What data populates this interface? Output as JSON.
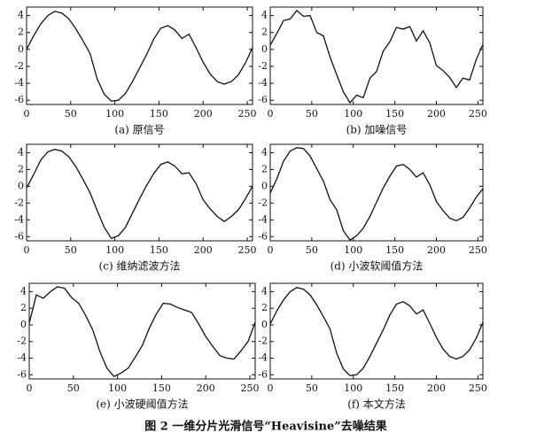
{
  "caption": "图 2 一维分片光滑信号“Heavisine”去噪结果",
  "chart_data": [
    {
      "type": "line",
      "title": "(a) 原信号",
      "color": "#111111",
      "x": [
        0,
        8,
        16,
        24,
        32,
        40,
        48,
        56,
        64,
        72,
        80,
        88,
        96,
        104,
        112,
        120,
        128,
        136,
        144,
        152,
        160,
        168,
        176,
        184,
        192,
        200,
        208,
        216,
        224,
        232,
        240,
        248,
        256
      ],
      "values": [
        0,
        1.6,
        3.0,
        4.0,
        4.5,
        4.3,
        3.6,
        2.4,
        1.0,
        -0.5,
        -3.5,
        -5.3,
        -6.1,
        -6.0,
        -5.2,
        -3.8,
        -2.2,
        -0.6,
        1.2,
        2.5,
        2.8,
        2.3,
        1.3,
        1.8,
        0.2,
        -1.5,
        -2.9,
        -3.8,
        -4.1,
        -3.8,
        -3.0,
        -1.6,
        0.2
      ],
      "xlim": [
        0,
        256
      ],
      "xticks": [
        0,
        50,
        100,
        150,
        200,
        250
      ],
      "ylim": [
        -6.5,
        5
      ],
      "yticks": [
        -6,
        -4,
        -2,
        0,
        2,
        4
      ]
    },
    {
      "type": "line",
      "title": "(b) 加噪信号",
      "color": "#111111",
      "x": [
        0,
        8,
        16,
        24,
        32,
        40,
        48,
        56,
        64,
        72,
        80,
        88,
        96,
        104,
        112,
        120,
        128,
        136,
        144,
        152,
        160,
        168,
        176,
        184,
        192,
        200,
        208,
        216,
        224,
        232,
        240,
        248,
        256
      ],
      "values": [
        0.5,
        1.9,
        3.4,
        3.6,
        4.6,
        3.9,
        4.0,
        2.0,
        1.6,
        -0.9,
        -3.0,
        -5.0,
        -6.3,
        -5.4,
        -5.7,
        -3.4,
        -2.6,
        -0.2,
        0.9,
        2.6,
        2.4,
        2.7,
        1.0,
        2.2,
        0.8,
        -1.9,
        -2.5,
        -3.3,
        -4.5,
        -3.4,
        -3.6,
        -1.2,
        0.6
      ],
      "xlim": [
        0,
        256
      ],
      "xticks": [
        0,
        50,
        100,
        150,
        200,
        250
      ],
      "ylim": [
        -6.5,
        5
      ],
      "yticks": [
        -6,
        -4,
        -2,
        0,
        2,
        4
      ]
    },
    {
      "type": "line",
      "title": "(c) 维纳滤波方法",
      "color": "#111111",
      "x": [
        0,
        8,
        16,
        24,
        32,
        40,
        48,
        56,
        64,
        72,
        80,
        88,
        96,
        104,
        112,
        120,
        128,
        136,
        144,
        152,
        160,
        168,
        176,
        184,
        192,
        200,
        208,
        216,
        224,
        232,
        240,
        248,
        256
      ],
      "values": [
        -0.2,
        1.4,
        3.1,
        4.1,
        4.4,
        4.2,
        3.5,
        2.3,
        0.8,
        -0.8,
        -2.9,
        -4.9,
        -6.2,
        -5.9,
        -4.9,
        -3.2,
        -1.5,
        0.1,
        1.5,
        2.6,
        2.9,
        2.4,
        1.5,
        1.6,
        0.3,
        -1.6,
        -2.7,
        -3.6,
        -4.2,
        -3.6,
        -2.8,
        -1.5,
        0.0
      ],
      "xlim": [
        0,
        256
      ],
      "xticks": [
        0,
        50,
        100,
        150,
        200,
        250
      ],
      "ylim": [
        -6.5,
        5
      ],
      "yticks": [
        -6,
        -4,
        -2,
        0,
        2,
        4
      ]
    },
    {
      "type": "line",
      "title": "(d) 小波软阈值方法",
      "color": "#111111",
      "x": [
        0,
        8,
        16,
        24,
        32,
        40,
        48,
        56,
        64,
        72,
        80,
        88,
        96,
        104,
        112,
        120,
        128,
        136,
        144,
        152,
        160,
        168,
        176,
        184,
        192,
        200,
        208,
        216,
        224,
        232,
        240,
        248,
        256
      ],
      "values": [
        -0.8,
        0.9,
        3.0,
        4.2,
        4.6,
        4.5,
        3.6,
        2.1,
        0.6,
        -1.6,
        -2.8,
        -5.3,
        -6.4,
        -5.9,
        -5.0,
        -3.6,
        -1.9,
        -0.2,
        1.2,
        2.4,
        2.6,
        2.0,
        1.1,
        1.6,
        0.2,
        -1.8,
        -2.9,
        -3.8,
        -4.1,
        -3.7,
        -2.6,
        -1.3,
        -0.3
      ],
      "xlim": [
        0,
        256
      ],
      "xticks": [
        0,
        50,
        100,
        150,
        200,
        250
      ],
      "ylim": [
        -6.5,
        5
      ],
      "yticks": [
        -6,
        -4,
        -2,
        0,
        2,
        4
      ]
    },
    {
      "type": "line",
      "title": "(e) 小波硬阈值方法",
      "color": "#111111",
      "x": [
        0,
        8,
        16,
        24,
        32,
        40,
        48,
        56,
        64,
        72,
        80,
        88,
        96,
        104,
        112,
        120,
        128,
        136,
        144,
        152,
        160,
        168,
        176,
        184,
        192,
        200,
        208,
        216,
        224,
        232,
        240,
        248,
        256
      ],
      "values": [
        0.2,
        3.6,
        3.2,
        4.0,
        4.6,
        4.4,
        3.3,
        2.6,
        1.1,
        -0.6,
        -3.2,
        -5.2,
        -6.2,
        -5.8,
        -5.2,
        -3.9,
        -2.5,
        -0.4,
        1.3,
        2.6,
        2.5,
        2.1,
        1.8,
        1.5,
        0.1,
        -1.4,
        -2.6,
        -3.7,
        -4.0,
        -4.1,
        -3.1,
        -2.0,
        0.3
      ],
      "xlim": [
        0,
        256
      ],
      "xticks": [
        0,
        50,
        100,
        150,
        200,
        250
      ],
      "ylim": [
        -6.5,
        5
      ],
      "yticks": [
        -6,
        -4,
        -2,
        0,
        2,
        4
      ]
    },
    {
      "type": "line",
      "title": "(f) 本文方法",
      "color": "#111111",
      "x": [
        0,
        8,
        16,
        24,
        32,
        40,
        48,
        56,
        64,
        72,
        80,
        88,
        96,
        104,
        112,
        120,
        128,
        136,
        144,
        152,
        160,
        168,
        176,
        184,
        192,
        200,
        208,
        216,
        224,
        232,
        240,
        248,
        256
      ],
      "values": [
        0.1,
        1.7,
        3.0,
        4.0,
        4.5,
        4.3,
        3.6,
        2.4,
        1.0,
        -0.5,
        -3.4,
        -5.3,
        -6.1,
        -6.0,
        -5.2,
        -3.8,
        -2.2,
        -0.6,
        1.2,
        2.5,
        2.8,
        2.3,
        1.3,
        1.8,
        0.2,
        -1.5,
        -2.9,
        -3.8,
        -4.1,
        -3.8,
        -3.0,
        -1.6,
        0.3
      ],
      "xlim": [
        0,
        256
      ],
      "xticks": [
        0,
        50,
        100,
        150,
        200,
        250
      ],
      "ylim": [
        -6.5,
        5
      ],
      "yticks": [
        -6,
        -4,
        -2,
        0,
        2,
        4
      ]
    }
  ]
}
